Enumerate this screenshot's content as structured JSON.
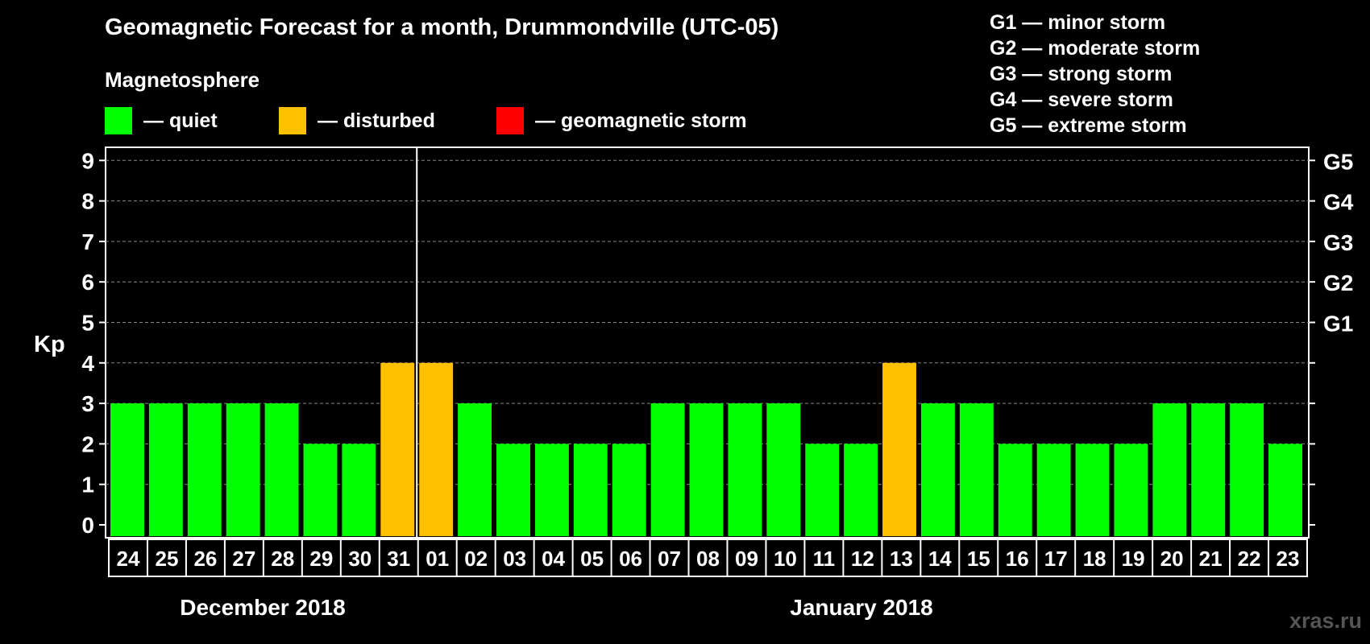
{
  "chart_data": {
    "type": "bar",
    "title": "Geomagnetic Forecast for a month, Drummondville (UTC-05)",
    "subtitle": "Magnetosphere",
    "ylabel": "Kp",
    "ylim": [
      0,
      9
    ],
    "yticks": [
      "0",
      "1",
      "2",
      "3",
      "4",
      "5",
      "6",
      "7",
      "8",
      "9"
    ],
    "right_ticks": [
      {
        "kp": 5,
        "label": "G1"
      },
      {
        "kp": 6,
        "label": "G2"
      },
      {
        "kp": 7,
        "label": "G3"
      },
      {
        "kp": 8,
        "label": "G4"
      },
      {
        "kp": 9,
        "label": "G5"
      }
    ],
    "categories": [
      "24",
      "25",
      "26",
      "27",
      "28",
      "29",
      "30",
      "31",
      "01",
      "02",
      "03",
      "04",
      "05",
      "06",
      "07",
      "08",
      "09",
      "10",
      "11",
      "12",
      "13",
      "14",
      "15",
      "16",
      "17",
      "18",
      "19",
      "20",
      "21",
      "22",
      "23"
    ],
    "values": [
      3,
      3,
      3,
      3,
      3,
      2,
      2,
      4,
      4,
      3,
      2,
      2,
      2,
      2,
      3,
      3,
      3,
      3,
      2,
      2,
      4,
      3,
      3,
      2,
      2,
      2,
      2,
      3,
      3,
      3,
      2
    ],
    "month_divider_after_index": 7,
    "months": [
      "December 2018",
      "January 2018"
    ],
    "legend": [
      {
        "label": "— quiet",
        "color": "#00ff00"
      },
      {
        "label": "— disturbed",
        "color": "#ffc000"
      },
      {
        "label": "— geomagnetic storm",
        "color": "#ff0000"
      }
    ],
    "g_scale": [
      "G1 — minor storm",
      "G2 — moderate storm",
      "G3 — strong storm",
      "G4 — severe storm",
      "G5 — extreme storm"
    ],
    "colors": {
      "quiet": "#00ff00",
      "disturbed": "#ffc000",
      "storm": "#ff0000",
      "background": "#000000",
      "grid": "#888888"
    },
    "grid": true
  },
  "watermark": "xras.ru"
}
